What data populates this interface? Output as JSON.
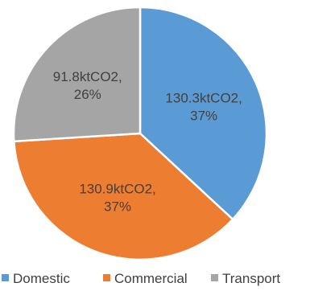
{
  "chart_data": {
    "type": "pie",
    "title": "",
    "slices": [
      {
        "name": "Domestic",
        "value": 130.3,
        "unit": "ktCO2",
        "percent": 37,
        "label_line1": "130.3ktCO2,",
        "label_line2": "37%",
        "color": "#5b9bd5"
      },
      {
        "name": "Commercial",
        "value": 130.9,
        "unit": "ktCO2",
        "percent": 37,
        "label_line1": "130.9ktCO2,",
        "label_line2": "37%",
        "color": "#ed7d31"
      },
      {
        "name": "Transport",
        "value": 91.8,
        "unit": "ktCO2",
        "percent": 26,
        "label_line1": "91.8ktCO2,",
        "label_line2": "26%",
        "color": "#a5a5a5"
      }
    ],
    "start_angle_deg": 0,
    "direction": "clockwise",
    "legend": {
      "position": "bottom",
      "entries": [
        "Domestic",
        "Commercial",
        "Transport"
      ]
    }
  }
}
